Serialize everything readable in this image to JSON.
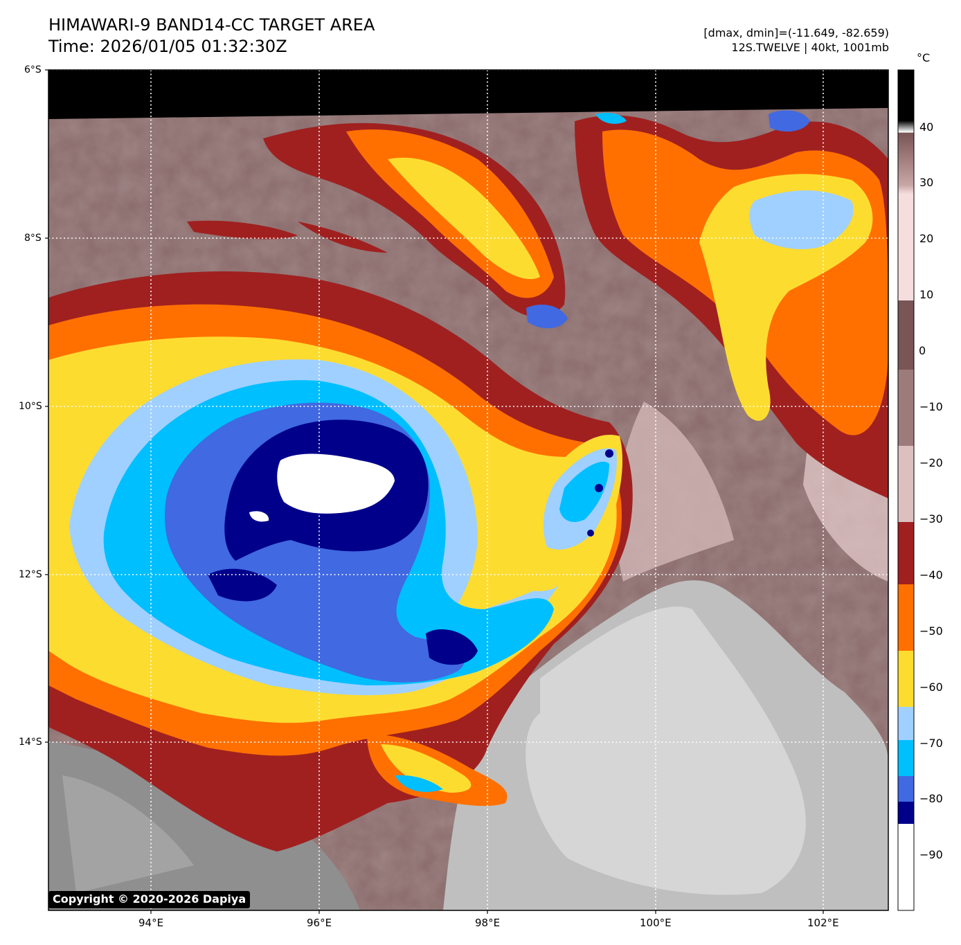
{
  "title": {
    "line1": "HIMAWARI-9 BAND14-CC TARGET AREA",
    "line2": "Time: 2026/01/05 01:32:30Z"
  },
  "info": {
    "range": "[dmax, dmin]=(-11.649, -82.659)",
    "storm": "12S.TWELVE | 40kt, 1001mb"
  },
  "map": {
    "lon_ticks": [
      "94°E",
      "96°E",
      "98°E",
      "100°E",
      "102°E"
    ],
    "lat_ticks": [
      "6°S",
      "8°S",
      "10°S",
      "12°S",
      "14°S"
    ],
    "lon_range": [
      92.75,
      102.75
    ],
    "lat_range": [
      -16.0,
      -6.0
    ],
    "grid": "dotted white",
    "storm_center": {
      "lon": 96.3,
      "lat": -10.9
    }
  },
  "colorbar": {
    "unit": "°C",
    "ticks": [
      "40",
      "30",
      "20",
      "10",
      "0",
      "−10",
      "−20",
      "−30",
      "−40",
      "−50",
      "−60",
      "−70",
      "−80",
      "−90"
    ],
    "range": [
      -100,
      50
    ],
    "enhancement": [
      {
        "range": [
          -90,
          -100
        ],
        "color": "#ffffff"
      },
      {
        "range": [
          -85,
          -90
        ],
        "color": "#00008b"
      },
      {
        "range": [
          -80,
          -85
        ],
        "color": "#4169e1"
      },
      {
        "range": [
          -70,
          -80
        ],
        "color": "#00bfff"
      },
      {
        "range": [
          -64,
          -70
        ],
        "color": "#a0d0ff"
      },
      {
        "range": [
          -54,
          -64
        ],
        "color": "#fddc30"
      },
      {
        "range": [
          -42,
          -54
        ],
        "color": "#ff7000"
      },
      {
        "range": [
          -31,
          -42
        ],
        "color": "#a02020"
      }
    ]
  },
  "copyright": "Copyright © 2020-2026 Dapiya"
}
